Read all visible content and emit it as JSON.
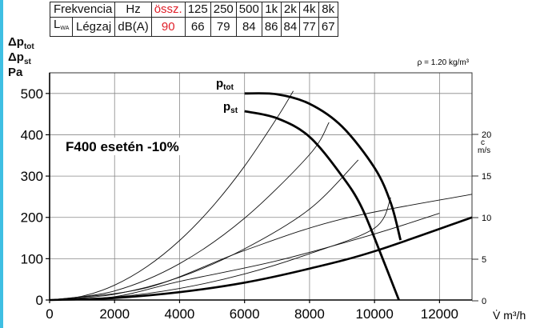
{
  "noise_table": {
    "row1": {
      "label": "Frekvencia",
      "unit": "Hz",
      "total_label": "össz.",
      "bands": [
        "125",
        "250",
        "500",
        "1k",
        "2k",
        "4k",
        "8k"
      ]
    },
    "row2": {
      "symbol": "L",
      "symbol_sub": "WA",
      "label": "Légzaj",
      "unit": "dB(A)",
      "total": "90",
      "values": [
        "66",
        "79",
        "84",
        "86",
        "84",
        "77",
        "67"
      ]
    }
  },
  "colors": {
    "total_highlight": "#e0202a",
    "left_border": "#3fbfe3"
  },
  "chart_data": {
    "type": "line",
    "ylabel_lines": [
      {
        "prefix": "Δp",
        "sub": "tot"
      },
      {
        "prefix": "Δp",
        "sub": "st"
      },
      {
        "prefix": "Pa",
        "sub": ""
      }
    ],
    "xlabel": "V̇  m³/h",
    "density_note": "ρ = 1.20 kg/m³",
    "annotation": "F400 esetén -10%",
    "xlim": [
      0,
      13000
    ],
    "ylim": [
      0,
      550
    ],
    "x_ticks": [
      0,
      2000,
      4000,
      6000,
      8000,
      10000,
      12000
    ],
    "y_ticks": [
      0,
      100,
      200,
      300,
      400,
      500
    ],
    "right_axis": {
      "label_c": "c",
      "label_unit": "m/s",
      "ticks": [
        0,
        5,
        10,
        15,
        20
      ]
    },
    "grid": true,
    "series": [
      {
        "name": "ptot",
        "label_main": "p",
        "label_sub": "tot",
        "points": [
          [
            6000,
            500
          ],
          [
            7000,
            498
          ],
          [
            8000,
            475
          ],
          [
            9000,
            420
          ],
          [
            10000,
            320
          ],
          [
            10500,
            235
          ],
          [
            10800,
            145
          ]
        ]
      },
      {
        "name": "pst",
        "label_main": "p",
        "label_sub": "st",
        "points": [
          [
            6000,
            457
          ],
          [
            7000,
            440
          ],
          [
            8000,
            395
          ],
          [
            9000,
            300
          ],
          [
            9600,
            225
          ],
          [
            10200,
            110
          ],
          [
            10750,
            0
          ]
        ]
      },
      {
        "name": "dyn_pressure",
        "points": [
          [
            0,
            0
          ],
          [
            2000,
            5
          ],
          [
            4000,
            19
          ],
          [
            6000,
            42
          ],
          [
            8000,
            76
          ],
          [
            10000,
            118
          ],
          [
            13000,
            200
          ]
        ]
      }
    ],
    "system_curves": [
      {
        "points": [
          [
            0,
            0
          ],
          [
            1000,
            9
          ],
          [
            2000,
            36
          ],
          [
            3000,
            81
          ],
          [
            4000,
            144
          ],
          [
            5000,
            225
          ],
          [
            6000,
            324
          ],
          [
            7000,
            441
          ],
          [
            7500,
            506
          ]
        ]
      },
      {
        "points": [
          [
            0,
            0
          ],
          [
            2000,
            22
          ],
          [
            4000,
            88
          ],
          [
            6000,
            198
          ],
          [
            8000,
            352
          ],
          [
            8600,
            430
          ]
        ]
      },
      {
        "points": [
          [
            0,
            0
          ],
          [
            2000,
            14
          ],
          [
            4000,
            55
          ],
          [
            6000,
            124
          ],
          [
            8000,
            220
          ],
          [
            9500,
            339
          ]
        ]
      },
      {
        "points": [
          [
            0,
            0
          ],
          [
            2000,
            7
          ],
          [
            4000,
            28
          ],
          [
            6000,
            63
          ],
          [
            8000,
            112
          ],
          [
            10000,
            174
          ],
          [
            10500,
            248
          ]
        ]
      },
      {
        "points": [
          [
            0,
            0
          ],
          [
            3000,
            30
          ],
          [
            6000,
            120
          ],
          [
            9000,
            196
          ],
          [
            13000,
            256
          ]
        ]
      },
      {
        "points": [
          [
            0,
            0
          ],
          [
            2000,
            8
          ],
          [
            4000,
            45
          ],
          [
            7000,
            95
          ],
          [
            10000,
            160
          ],
          [
            12000,
            210
          ]
        ]
      }
    ]
  }
}
